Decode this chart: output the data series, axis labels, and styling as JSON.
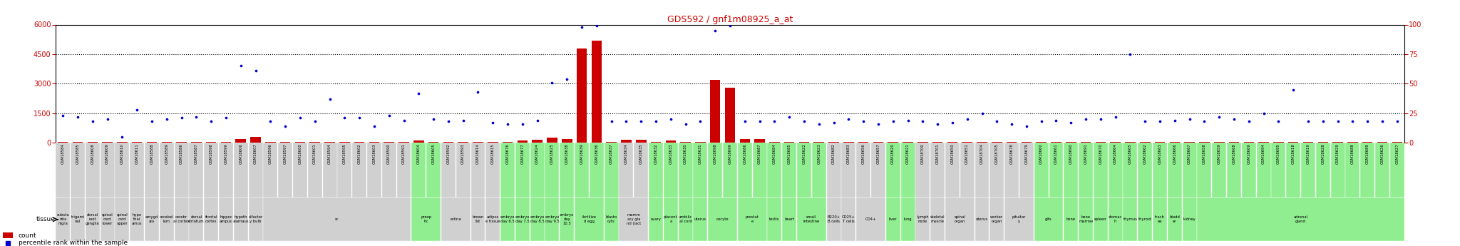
{
  "title": "GDS592 / gnf1m08925_a_at",
  "ylim_left": [
    0,
    6000
  ],
  "ylim_right": [
    0,
    100
  ],
  "yticks_left": [
    0,
    1500,
    3000,
    4500,
    6000
  ],
  "yticks_right": [
    0,
    25,
    50,
    75,
    100
  ],
  "bar_color": "#cc0000",
  "dot_color": "#0000cc",
  "title_color": "#cc0000",
  "tick_color": "#cc0000",
  "grid_color": "black",
  "bg_color": "white",
  "group_bg": {
    "gray": "#d0d0d0",
    "green": "#90ee90"
  },
  "samples": [
    {
      "id": "GSM18584",
      "tissue": "substa\nntia\nnigra",
      "count": 50,
      "pct": 23,
      "green": false
    },
    {
      "id": "GSM18585",
      "tissue": "trigemi\nnal",
      "count": 50,
      "pct": 22,
      "green": false
    },
    {
      "id": "GSM18608",
      "tissue": "dorsal\nroot\nganglia",
      "count": 50,
      "pct": 18,
      "green": false
    },
    {
      "id": "GSM18609",
      "tissue": "spinal\ncord\nlower",
      "count": 50,
      "pct": 20,
      "green": false
    },
    {
      "id": "GSM18610",
      "tissue": "spinal\ncord\nupper",
      "count": 50,
      "pct": 5,
      "green": false
    },
    {
      "id": "GSM18611",
      "tissue": "hypo\nthal\namus",
      "count": 50,
      "pct": 28,
      "green": false
    },
    {
      "id": "GSM18588",
      "tissue": "amygd\nala",
      "count": 50,
      "pct": 18,
      "green": false
    },
    {
      "id": "GSM18589",
      "tissue": "cerebel\nlum",
      "count": 50,
      "pct": 20,
      "green": false
    },
    {
      "id": "GSM18586",
      "tissue": "cerebr\nal cortex",
      "count": 50,
      "pct": 21,
      "green": false
    },
    {
      "id": "GSM18587",
      "tissue": "dorsal\nstriatum",
      "count": 50,
      "pct": 22,
      "green": false
    },
    {
      "id": "GSM18598",
      "tissue": "frontal\ncortex",
      "count": 50,
      "pct": 18,
      "green": false
    },
    {
      "id": "GSM18599",
      "tissue": "hippoc\nampus",
      "count": 50,
      "pct": 21,
      "green": false
    },
    {
      "id": "GSM18606",
      "tissue": "hypoth\nalamaus",
      "count": 200,
      "pct": 65,
      "green": false
    },
    {
      "id": "GSM18607",
      "tissue": "olfactor\ny bulb",
      "count": 300,
      "pct": 61,
      "green": false
    },
    {
      "id": "GSM18596",
      "tissue": "sc",
      "count": 50,
      "pct": 18,
      "green": false
    },
    {
      "id": "GSM18597",
      "tissue": "sc",
      "count": 50,
      "pct": 14,
      "green": false
    },
    {
      "id": "GSM18600",
      "tissue": "sc",
      "count": 50,
      "pct": 21,
      "green": false
    },
    {
      "id": "GSM18601",
      "tissue": "sc",
      "count": 50,
      "pct": 18,
      "green": false
    },
    {
      "id": "GSM18594",
      "tissue": "sc",
      "count": 50,
      "pct": 37,
      "green": false
    },
    {
      "id": "GSM18595",
      "tissue": "sc",
      "count": 50,
      "pct": 21,
      "green": false
    },
    {
      "id": "GSM18602",
      "tissue": "sc",
      "count": 50,
      "pct": 21,
      "green": false
    },
    {
      "id": "GSM18603",
      "tissue": "sc",
      "count": 50,
      "pct": 14,
      "green": false
    },
    {
      "id": "GSM18590",
      "tissue": "sc",
      "count": 50,
      "pct": 23,
      "green": false
    },
    {
      "id": "GSM18591",
      "tissue": "sc",
      "count": 50,
      "pct": 19,
      "green": false
    },
    {
      "id": "GSM18604",
      "tissue": "preop\ntic",
      "count": 100,
      "pct": 42,
      "green": true
    },
    {
      "id": "GSM18605",
      "tissue": "preop\ntic",
      "count": 50,
      "pct": 20,
      "green": true
    },
    {
      "id": "GSM18592",
      "tissue": "retina",
      "count": 50,
      "pct": 18,
      "green": false
    },
    {
      "id": "GSM18593",
      "tissue": "retina",
      "count": 50,
      "pct": 19,
      "green": false
    },
    {
      "id": "GSM18614",
      "tissue": "brown\nfat",
      "count": 50,
      "pct": 43,
      "green": false
    },
    {
      "id": "GSM18615",
      "tissue": "adipos\ne tissue",
      "count": 50,
      "pct": 17,
      "green": false
    },
    {
      "id": "GSM18676",
      "tissue": "embryo\nday 6.5",
      "count": 50,
      "pct": 16,
      "green": true
    },
    {
      "id": "GSM18677",
      "tissue": "embryo\nday 7.5",
      "count": 100,
      "pct": 16,
      "green": true
    },
    {
      "id": "GSM18624",
      "tissue": "embryo\nday 8.5",
      "count": 150,
      "pct": 19,
      "green": true
    },
    {
      "id": "GSM18625",
      "tissue": "embryo\nday 9.5",
      "count": 250,
      "pct": 51,
      "green": true
    },
    {
      "id": "GSM18638",
      "tissue": "embryo\nday\n10.5",
      "count": 200,
      "pct": 54,
      "green": true
    },
    {
      "id": "GSM18639",
      "tissue": "fertilize\nd egg",
      "count": 4800,
      "pct": 98,
      "green": true
    },
    {
      "id": "GSM18636",
      "tissue": "fertilize\nd egg",
      "count": 5200,
      "pct": 99,
      "green": true
    },
    {
      "id": "GSM18637",
      "tissue": "blasto\ncyts",
      "count": 50,
      "pct": 18,
      "green": true
    },
    {
      "id": "GSM18634",
      "tissue": "mamm\nary gla\nnd (lact",
      "count": 150,
      "pct": 18,
      "green": false
    },
    {
      "id": "GSM18635",
      "tissue": "mamm\nary gla\nnd (lact",
      "count": 150,
      "pct": 18,
      "green": false
    },
    {
      "id": "GSM18632",
      "tissue": "ovary",
      "count": 50,
      "pct": 18,
      "green": true
    },
    {
      "id": "GSM18633",
      "tissue": "placent\na",
      "count": 100,
      "pct": 20,
      "green": true
    },
    {
      "id": "GSM18630",
      "tissue": "umbilic\nal cord",
      "count": 50,
      "pct": 16,
      "green": true
    },
    {
      "id": "GSM18631",
      "tissue": "uterus",
      "count": 50,
      "pct": 18,
      "green": true
    },
    {
      "id": "GSM18698",
      "tissue": "oocyte",
      "count": 3200,
      "pct": 95,
      "green": true
    },
    {
      "id": "GSM18699",
      "tissue": "oocyte",
      "count": 2800,
      "pct": 99,
      "green": true
    },
    {
      "id": "GSM18686",
      "tissue": "prostat\ne",
      "count": 200,
      "pct": 18,
      "green": true
    },
    {
      "id": "GSM18687",
      "tissue": "prostat\ne",
      "count": 200,
      "pct": 18,
      "green": true
    },
    {
      "id": "GSM18684",
      "tissue": "testis",
      "count": 50,
      "pct": 18,
      "green": true
    },
    {
      "id": "GSM18685",
      "tissue": "heart",
      "count": 50,
      "pct": 22,
      "green": true
    },
    {
      "id": "GSM18622",
      "tissue": "small\nintestine",
      "count": 50,
      "pct": 18,
      "green": true
    },
    {
      "id": "GSM18623",
      "tissue": "small\nintestine",
      "count": 50,
      "pct": 16,
      "green": true
    },
    {
      "id": "GSM18682",
      "tissue": "B220+\nB cells",
      "count": 50,
      "pct": 17,
      "green": false
    },
    {
      "id": "GSM18683",
      "tissue": "CD25+\nT cells",
      "count": 50,
      "pct": 20,
      "green": false
    },
    {
      "id": "GSM18656",
      "tissue": "CD4+",
      "count": 50,
      "pct": 18,
      "green": false
    },
    {
      "id": "GSM18657",
      "tissue": "CD4+",
      "count": 50,
      "pct": 16,
      "green": false
    },
    {
      "id": "GSM18620",
      "tissue": "liver",
      "count": 50,
      "pct": 18,
      "green": true
    },
    {
      "id": "GSM18621",
      "tissue": "lung",
      "count": 50,
      "pct": 19,
      "green": true
    },
    {
      "id": "GSM18700",
      "tissue": "lymph\nnode",
      "count": 50,
      "pct": 18,
      "green": false
    },
    {
      "id": "GSM18701",
      "tissue": "skeletal\nmuscle",
      "count": 50,
      "pct": 16,
      "green": false
    },
    {
      "id": "GSM18650",
      "tissue": "spinal\norgan",
      "count": 50,
      "pct": 17,
      "green": false
    },
    {
      "id": "GSM18651",
      "tissue": "spinal\norgan",
      "count": 50,
      "pct": 20,
      "green": false
    },
    {
      "id": "GSM18704",
      "tissue": "uterus",
      "count": 50,
      "pct": 25,
      "green": false
    },
    {
      "id": "GSM18705",
      "tissue": "worker\norgan",
      "count": 50,
      "pct": 18,
      "green": false
    },
    {
      "id": "GSM18678",
      "tissue": "pituitar\ny",
      "count": 50,
      "pct": 16,
      "green": false
    },
    {
      "id": "GSM18679",
      "tissue": "pituitar\ny",
      "count": 50,
      "pct": 14,
      "green": false
    },
    {
      "id": "GSM18660",
      "tissue": "glts",
      "count": 50,
      "pct": 18,
      "green": true
    },
    {
      "id": "GSM18661",
      "tissue": "glts",
      "count": 50,
      "pct": 19,
      "green": true
    },
    {
      "id": "GSM18690",
      "tissue": "bone",
      "count": 50,
      "pct": 17,
      "green": true
    },
    {
      "id": "GSM18691",
      "tissue": "bone\nmarrow",
      "count": 50,
      "pct": 20,
      "green": true
    },
    {
      "id": "GSM18670",
      "tissue": "spleen",
      "count": 50,
      "pct": 20,
      "green": true
    },
    {
      "id": "GSM18664",
      "tissue": "stomac\nh",
      "count": 50,
      "pct": 22,
      "green": true
    },
    {
      "id": "GSM18665",
      "tissue": "thymus",
      "count": 50,
      "pct": 75,
      "green": true
    },
    {
      "id": "GSM18662",
      "tissue": "thyroid",
      "count": 50,
      "pct": 18,
      "green": true
    },
    {
      "id": "GSM18663",
      "tissue": "trach\nea",
      "count": 50,
      "pct": 18,
      "green": true
    },
    {
      "id": "GSM18666",
      "tissue": "bladd\ner",
      "count": 50,
      "pct": 19,
      "green": true
    },
    {
      "id": "GSM18667",
      "tissue": "kidney",
      "count": 50,
      "pct": 20,
      "green": true
    },
    {
      "id": "GSM18658",
      "tissue": "adrenal\ngland",
      "count": 50,
      "pct": 18,
      "green": true
    },
    {
      "id": "GSM18659",
      "tissue": "adrenal\ngland",
      "count": 50,
      "pct": 22,
      "green": true
    },
    {
      "id": "GSM18668",
      "tissue": "adrenal\ngland",
      "count": 50,
      "pct": 20,
      "green": true
    },
    {
      "id": "GSM18669",
      "tissue": "adrenal\ngland",
      "count": 50,
      "pct": 18,
      "green": true
    },
    {
      "id": "GSM18694",
      "tissue": "adrenal\ngland",
      "count": 50,
      "pct": 25,
      "green": true
    },
    {
      "id": "GSM18695",
      "tissue": "adrenal\ngland",
      "count": 50,
      "pct": 18,
      "green": true
    },
    {
      "id": "GSM18618",
      "tissue": "adrenal\ngland",
      "count": 50,
      "pct": 45,
      "green": true
    },
    {
      "id": "GSM18619",
      "tissue": "adrenal\ngland",
      "count": 50,
      "pct": 18,
      "green": true
    },
    {
      "id": "GSM18628",
      "tissue": "adrenal\ngland",
      "count": 50,
      "pct": 18,
      "green": true
    },
    {
      "id": "GSM18629",
      "tissue": "adrenal\ngland",
      "count": 50,
      "pct": 18,
      "green": true
    },
    {
      "id": "GSM18688",
      "tissue": "adrenal\ngland",
      "count": 50,
      "pct": 18,
      "green": true
    },
    {
      "id": "GSM18689",
      "tissue": "adrenal\ngland",
      "count": 50,
      "pct": 18,
      "green": true
    },
    {
      "id": "GSM18626",
      "tissue": "adrenal\ngland",
      "count": 50,
      "pct": 18,
      "green": true
    },
    {
      "id": "GSM18627",
      "tissue": "adrenal\ngland",
      "count": 50,
      "pct": 18,
      "green": true
    }
  ]
}
